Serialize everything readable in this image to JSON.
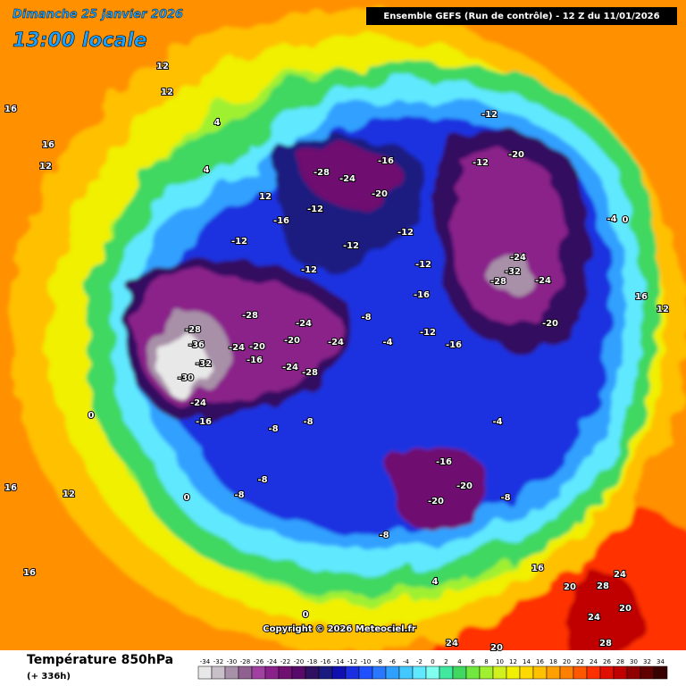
{
  "header": {
    "date": "Dimanche 25 janvier 2026",
    "time": "13:00 locale",
    "run": "Ensemble GEFS  (Run de contrôle)  -  12 Z du 11/01/2026"
  },
  "map": {
    "contour_labels": [
      12,
      12,
      4,
      16,
      16,
      12,
      4,
      12,
      -12,
      -16,
      -12,
      -28,
      -24,
      -16,
      -20,
      -12,
      -12,
      -12,
      -12,
      -16,
      -12,
      -20,
      -12,
      -24,
      -32,
      -28,
      -24,
      -20,
      -4,
      0,
      16,
      12,
      -28,
      -28,
      -36,
      -32,
      -30,
      -24,
      -24,
      -20,
      -16,
      -20,
      -24,
      -24,
      -28,
      -24,
      -8,
      -4,
      -12,
      -16,
      -16,
      -8,
      -8,
      0,
      16,
      12,
      -8,
      -8,
      0,
      -4,
      -16,
      -20,
      -20,
      -8,
      -8,
      4,
      16,
      20,
      28,
      24,
      24,
      20,
      28,
      20,
      24,
      16,
      0
    ],
    "copyright": "Copyright © 2026 Meteociel.fr"
  },
  "footer": {
    "title": "Température 850hPa",
    "subtitle": "(+ 336h)"
  },
  "legend": {
    "ticks": [
      -34,
      -32,
      -30,
      -28,
      -26,
      -24,
      -22,
      -20,
      -18,
      -16,
      -14,
      -12,
      -10,
      -8,
      -6,
      -4,
      -2,
      0,
      2,
      4,
      6,
      8,
      10,
      12,
      14,
      16,
      18,
      20,
      22,
      24,
      26,
      28,
      30,
      32,
      34
    ],
    "colors": [
      "#e8e8e8",
      "#c8c0c8",
      "#a890a8",
      "#906090",
      "#a040a0",
      "#8a208a",
      "#701070",
      "#580a6a",
      "#301060",
      "#1a1a80",
      "#1010b0",
      "#1a30e0",
      "#2050ff",
      "#2a78ff",
      "#30a0ff",
      "#40c8ff",
      "#60e8ff",
      "#80fff0",
      "#40e8a0",
      "#40d860",
      "#70e840",
      "#a0f030",
      "#d0f020",
      "#f0f000",
      "#ffd800",
      "#ffc000",
      "#ffa000",
      "#ff8000",
      "#ff5800",
      "#ff3000",
      "#e01000",
      "#c00000",
      "#900000",
      "#600000",
      "#380000"
    ]
  }
}
